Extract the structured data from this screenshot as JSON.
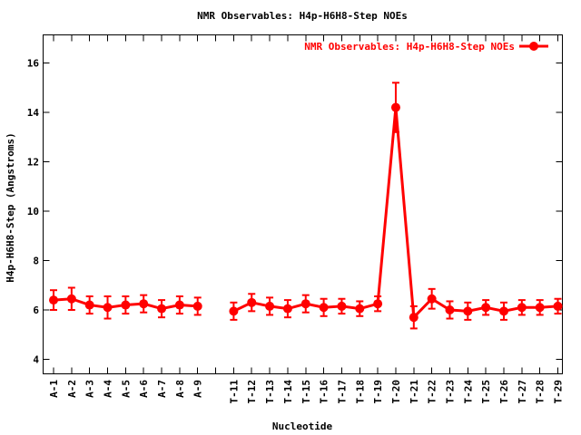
{
  "chart_data": {
    "type": "line",
    "title": "NMR Observables: H4p-H6H8-Step NOEs",
    "xlabel": "Nucleotide",
    "ylabel": "H4p-H6H8-Step (Angstroms)",
    "legend": {
      "label": "NMR Observables: H4p-H6H8-Step NOEs",
      "position": "top-right-inside",
      "marker": "filled-circle-on-line"
    },
    "axes": {
      "yticks": [
        4,
        6,
        8,
        10,
        12,
        14,
        16
      ],
      "ylim": [
        3.4,
        17.1
      ],
      "xlim": [
        0.4,
        29.3
      ],
      "grid": false,
      "tick_style": "inward-mirrored"
    },
    "colors": {
      "series": "#ff0000",
      "axis": "#000000",
      "background": "#ffffff"
    },
    "series": [
      {
        "name": "NMR Observables: H4p-H6H8-Step NOEs",
        "color": "#ff0000",
        "marker": "filled-circle",
        "error_bars": true,
        "categories": [
          "A-1",
          "A-2",
          "A-3",
          "A-4",
          "A-5",
          "A-6",
          "A-7",
          "A-8",
          "A-9",
          "T-11",
          "T-12",
          "T-13",
          "T-14",
          "T-15",
          "T-16",
          "T-17",
          "T-18",
          "T-19",
          "T-20",
          "T-21",
          "T-22",
          "T-23",
          "T-24",
          "T-25",
          "T-26",
          "T-27",
          "T-28",
          "T-29"
        ],
        "x_positions": [
          1,
          2,
          3,
          4,
          5,
          6,
          7,
          8,
          9,
          11,
          12,
          13,
          14,
          15,
          16,
          17,
          18,
          19,
          20,
          21,
          22,
          23,
          24,
          25,
          26,
          27,
          28,
          29
        ],
        "values": [
          6.4,
          6.45,
          6.2,
          6.1,
          6.2,
          6.25,
          6.05,
          6.2,
          6.15,
          5.95,
          6.3,
          6.15,
          6.05,
          6.25,
          6.1,
          6.15,
          6.05,
          6.25,
          14.2,
          5.7,
          6.45,
          6.0,
          5.95,
          6.1,
          5.95,
          6.1,
          6.1,
          6.15
        ],
        "errors": [
          0.4,
          0.45,
          0.35,
          0.45,
          0.35,
          0.35,
          0.35,
          0.35,
          0.35,
          0.35,
          0.35,
          0.35,
          0.35,
          0.35,
          0.35,
          0.3,
          0.3,
          0.3,
          1.0,
          0.45,
          0.4,
          0.35,
          0.35,
          0.3,
          0.35,
          0.3,
          0.3,
          0.3
        ]
      }
    ]
  }
}
